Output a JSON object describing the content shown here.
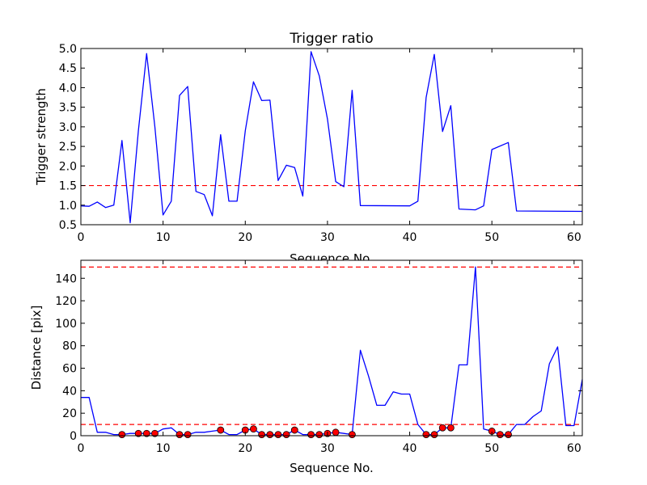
{
  "chart_data": [
    {
      "type": "line",
      "title": "Trigger ratio",
      "xlabel": "Sequence No.",
      "ylabel": "Trigger strength",
      "xlim": [
        0,
        61
      ],
      "ylim": [
        0.5,
        5.0
      ],
      "x_ticks": [
        0,
        10,
        20,
        30,
        40,
        50,
        60
      ],
      "y_ticks": [
        "0.5",
        "1.0",
        "1.5",
        "2.0",
        "2.5",
        "3.0",
        "3.5",
        "4.0",
        "4.5",
        "5.0"
      ],
      "threshold": 1.5,
      "series": [
        {
          "color": "#0000ff",
          "x": [
            0,
            1,
            2,
            3,
            4,
            5,
            6,
            7,
            8,
            9,
            10,
            11,
            12,
            13,
            14,
            15,
            16,
            17,
            18,
            19,
            20,
            21,
            22,
            23,
            24,
            25,
            26,
            27,
            28,
            29,
            30,
            31,
            32,
            33,
            34,
            40,
            41,
            42,
            43,
            44,
            45,
            46,
            48,
            49,
            50,
            52,
            53,
            61
          ],
          "y": [
            0.98,
            0.97,
            1.08,
            0.94,
            1.0,
            2.65,
            0.55,
            2.9,
            4.87,
            3.0,
            0.75,
            1.1,
            3.8,
            4.03,
            1.35,
            1.27,
            0.73,
            2.8,
            1.1,
            1.1,
            2.9,
            4.15,
            3.67,
            3.68,
            1.63,
            2.02,
            1.96,
            1.23,
            4.92,
            4.3,
            3.2,
            1.6,
            1.47,
            3.93,
            0.99,
            0.98,
            1.1,
            3.75,
            4.85,
            2.88,
            3.54,
            0.9,
            0.88,
            0.98,
            2.42,
            2.6,
            0.85,
            0.84
          ]
        }
      ]
    },
    {
      "type": "line",
      "title": "",
      "xlabel": "Sequence No.",
      "ylabel": "Distance [pix]",
      "xlim": [
        0,
        61
      ],
      "ylim": [
        0,
        156
      ],
      "x_ticks": [
        0,
        10,
        20,
        30,
        40,
        50,
        60
      ],
      "y_ticks": [
        0,
        20,
        40,
        60,
        80,
        100,
        120,
        140
      ],
      "thresholds": [
        10,
        150
      ],
      "series": [
        {
          "color": "#0000ff",
          "x": [
            0,
            1,
            2,
            3,
            4,
            5,
            6,
            7,
            8,
            9,
            10,
            11,
            12,
            13,
            14,
            15,
            16,
            17,
            18,
            19,
            20,
            21,
            22,
            23,
            24,
            25,
            26,
            27,
            28,
            29,
            30,
            31,
            32,
            33,
            34,
            35,
            36,
            37,
            38,
            39,
            40,
            41,
            42,
            43,
            44,
            45,
            46,
            47,
            48,
            49,
            50,
            51,
            52,
            53,
            54,
            55,
            56,
            57,
            58,
            59,
            60,
            61
          ],
          "y": [
            34,
            34,
            3,
            3,
            1,
            1,
            2,
            2,
            2,
            2,
            6,
            7,
            1,
            1,
            3,
            3,
            4,
            5,
            1,
            1,
            5,
            6,
            1,
            1,
            1,
            1,
            5,
            1,
            1,
            1,
            2,
            3,
            2,
            1,
            76,
            53,
            27,
            27,
            39,
            37,
            37,
            10,
            1,
            1,
            7,
            7,
            63,
            63,
            150,
            6,
            4,
            1,
            1,
            10,
            10,
            17,
            22,
            64,
            79,
            9,
            9,
            50
          ]
        }
      ],
      "markers": {
        "color": "#ff0000",
        "x": [
          5,
          7,
          8,
          9,
          12,
          13,
          17,
          20,
          21,
          22,
          23,
          24,
          25,
          26,
          28,
          29,
          30,
          31,
          33,
          42,
          43,
          44,
          45,
          50,
          51,
          52
        ],
        "y": [
          1,
          2,
          2,
          2,
          1,
          1,
          5,
          5,
          6,
          1,
          1,
          1,
          1,
          5,
          1,
          1,
          2,
          3,
          1,
          1,
          1,
          7,
          7,
          4,
          1,
          1
        ]
      }
    }
  ]
}
